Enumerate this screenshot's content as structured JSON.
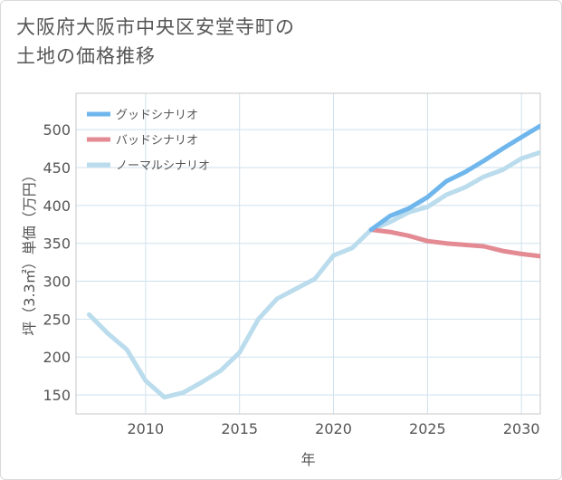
{
  "title": {
    "line1": "大阪府大阪市中央区安堂寺町の",
    "line2": "土地の価格推移"
  },
  "chart_data": {
    "type": "line",
    "title": "大阪府大阪市中央区安堂寺町の土地の価格推移",
    "xlabel": "年",
    "ylabel": "坪（3.3㎡）単価（万円）",
    "xlim": [
      2006.3,
      2031
    ],
    "ylim": [
      125,
      548
    ],
    "xticks": [
      2010,
      2015,
      2020,
      2025,
      2030
    ],
    "yticks": [
      150,
      200,
      250,
      300,
      350,
      400,
      450,
      500
    ],
    "grid": true,
    "legend_position": "top-left",
    "series": [
      {
        "name": "グッドシナリオ",
        "color": "#6fb6ec",
        "x": [
          2022,
          2023,
          2024,
          2025,
          2026,
          2027,
          2028,
          2029,
          2030,
          2031
        ],
        "y": [
          368,
          386,
          396,
          411,
          432,
          444,
          459,
          475,
          490,
          505
        ]
      },
      {
        "name": "バッドシナリオ",
        "color": "#e38a93",
        "x": [
          2022,
          2023,
          2024,
          2025,
          2026,
          2027,
          2028,
          2029,
          2030,
          2031
        ],
        "y": [
          368,
          365,
          360,
          353,
          350,
          348,
          346,
          340,
          336,
          333
        ]
      },
      {
        "name": "ノーマルシナリオ",
        "color": "#badcec",
        "x": [
          2007,
          2008,
          2009,
          2010,
          2011,
          2012,
          2013,
          2014,
          2015,
          2016,
          2017,
          2018,
          2019,
          2020,
          2021,
          2022,
          2023,
          2024,
          2025,
          2026,
          2027,
          2028,
          2029,
          2030,
          2031
        ],
        "y": [
          256,
          231,
          210,
          169,
          147,
          153,
          167,
          182,
          206,
          250,
          277,
          290,
          303,
          334,
          344,
          368,
          378,
          391,
          398,
          414,
          424,
          438,
          447,
          462,
          470
        ]
      }
    ]
  }
}
